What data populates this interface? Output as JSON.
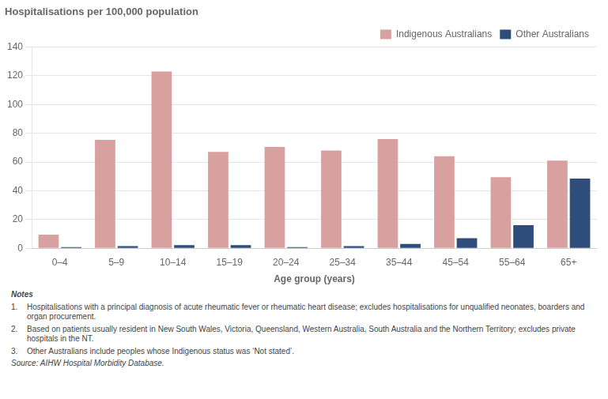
{
  "chart_data": {
    "type": "bar",
    "title": "Hospitalisations per 100,000 population",
    "xlabel": "Age group (years)",
    "categories": [
      "0–4",
      "5–9",
      "10–14",
      "15–19",
      "20–24",
      "25–34",
      "35–44",
      "45–54",
      "55–64",
      "65+"
    ],
    "series": [
      {
        "name": "Indigenous Australians",
        "color": "#d9a0a0",
        "values": [
          9.5,
          75.5,
          123.0,
          67.0,
          70.5,
          68.0,
          76.0,
          64.0,
          49.5,
          61.0
        ]
      },
      {
        "name": "Other Australians",
        "color": "#2e4d7b",
        "values": [
          0.8,
          1.5,
          2.2,
          2.2,
          0.8,
          1.5,
          3.0,
          7.0,
          16.0,
          48.5
        ]
      }
    ],
    "ylim": [
      0,
      140
    ],
    "yticks": [
      0,
      20,
      40,
      60,
      80,
      100,
      120,
      140
    ],
    "grid": true,
    "legend": "upper right",
    "notes_header": "Notes",
    "notes": [
      {
        "number": "1.",
        "text": "Hospitalisations with a principal diagnosis of acute rheumatic fever or rheumatic heart disease; excludes hospitalisations for unqualified neonates, boarders and organ procurement."
      },
      {
        "number": "2.",
        "text": "Based on patients usually resident in New South Wales, Victoria, Queensland, Western Australia, South Australia and the Northern Territory; excludes private hospitals in the NT."
      },
      {
        "number": "3.",
        "text": "Other Australians include peoples whose Indigenous status was ‘Not stated’."
      }
    ],
    "source": "Source: AIHW Hospital Morbidity Database."
  }
}
